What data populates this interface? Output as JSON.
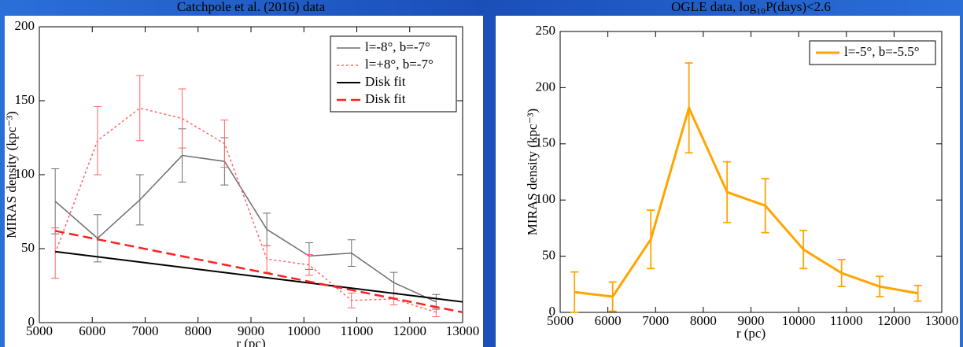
{
  "chart_data": [
    {
      "type": "line",
      "title": "Catchpole et al. (2016) data",
      "xlabel": "r (pc)",
      "ylabel": "MIRAS density (kpc⁻³)",
      "xlim": [
        5000,
        13000
      ],
      "ylim": [
        0,
        200
      ],
      "xticks": [
        5000,
        6000,
        7000,
        8000,
        9000,
        10000,
        11000,
        12000,
        13000
      ],
      "yticks": [
        0,
        50,
        100,
        150,
        200
      ],
      "legend": "upper right",
      "series": [
        {
          "name": "l=-8°, b=-7°",
          "color": "#6e6e6e",
          "dash": "solid",
          "width": 1.5,
          "x": [
            5300,
            6100,
            6900,
            7700,
            8500,
            9300,
            10100,
            10900,
            11700,
            12500
          ],
          "values": [
            82,
            57,
            83,
            113,
            109,
            63,
            45,
            47,
            27,
            14
          ],
          "errors": [
            22,
            16,
            17,
            18,
            16,
            11,
            9,
            9,
            7,
            5
          ]
        },
        {
          "name": "l=+8°, b=-7°",
          "color": "#ff6666",
          "dash": "dotted",
          "width": 1.5,
          "x": [
            5300,
            6100,
            6900,
            7700,
            8500,
            9300,
            10100,
            10900,
            11700,
            12500
          ],
          "values": [
            47,
            123,
            145,
            138,
            121,
            43,
            39,
            15,
            16,
            7
          ],
          "errors": [
            17,
            23,
            22,
            20,
            16,
            9,
            7,
            5,
            4,
            3
          ]
        },
        {
          "name": "Disk fit",
          "color": "#000000",
          "dash": "solid",
          "width": 2,
          "x": [
            5300,
            13000
          ],
          "values": [
            48,
            14
          ]
        },
        {
          "name": "Disk fit",
          "color": "#ff2020",
          "dash": "dashed",
          "width": 2.5,
          "x": [
            5300,
            13000
          ],
          "values": [
            62,
            7
          ]
        }
      ]
    },
    {
      "type": "line",
      "title": "OGLE data, log₁₀P(days)<2.6",
      "xlabel": "r (pc)",
      "ylabel": "MIRAS density (kpc⁻³)",
      "xlim": [
        5000,
        13000
      ],
      "ylim": [
        0,
        250
      ],
      "xticks": [
        5000,
        6000,
        7000,
        8000,
        9000,
        10000,
        11000,
        12000,
        13000
      ],
      "yticks": [
        0,
        50,
        100,
        150,
        200,
        250
      ],
      "legend": "upper right",
      "series": [
        {
          "name": "l=-5°, b=-5.5°",
          "color": "#ffa500",
          "dash": "solid",
          "width": 3,
          "x": [
            5300,
            6100,
            6900,
            7700,
            8500,
            9300,
            10100,
            10900,
            11700,
            12500
          ],
          "values": [
            18,
            14,
            65,
            182,
            107,
            95,
            56,
            35,
            23,
            17
          ],
          "errors": [
            18,
            13,
            26,
            40,
            27,
            24,
            17,
            12,
            9,
            7
          ]
        }
      ]
    }
  ]
}
